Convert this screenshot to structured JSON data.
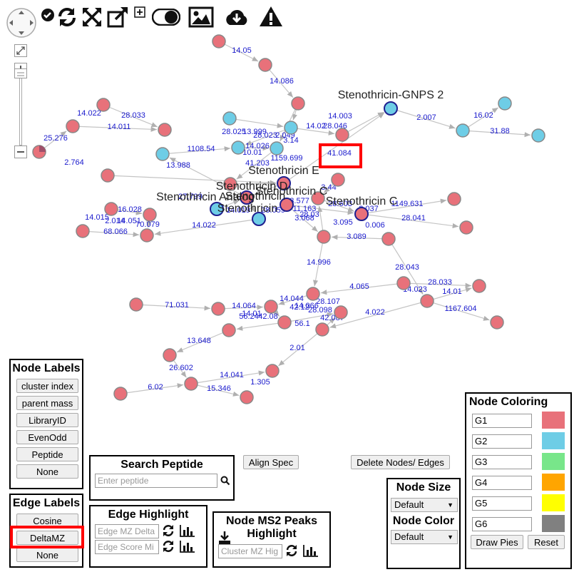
{
  "toolbar": {
    "icons": [
      "pan-icon",
      "check-icon",
      "refresh-icon",
      "expand-icon",
      "open-new-window-icon",
      "add-icon",
      "toggle-icon",
      "image-icon",
      "cloud-download-icon",
      "warning-icon"
    ]
  },
  "graph": {
    "node_labels": [
      "Stenothricin-GNPS 2",
      "Stenothricin E",
      "Stenothricin D",
      "Stenothricin Analog",
      "Stenothricin",
      "Stenothricin C",
      "Stenothricin C",
      "Stenothricin"
    ],
    "edge_labels": [
      "14.05",
      "14.086",
      "14.022",
      "28.033",
      "14.011",
      "25.276",
      "2.764",
      "1108.54",
      "28.025",
      "13.999",
      "28.023",
      "2.049",
      "3.14",
      "14.026",
      "10.01",
      "41.203",
      "1159.699",
      "14.003",
      "14.02",
      "28.046",
      "41.084",
      "2.007",
      "16.02",
      "31.88",
      "13.988",
      "27.799",
      "16.028",
      "2.014",
      "14.051",
      "14.015",
      "68.066",
      "70.079",
      "14.019",
      "28.059",
      "14.022",
      "3.44",
      "1149.631",
      "28.041",
      "28.603",
      "2.037",
      "0.006",
      "28.03",
      "3.068",
      "11.163",
      "28.577",
      "3.095",
      "3.089",
      "14.996",
      "28.043",
      "4.065",
      "28.033",
      "14.023",
      "14.01",
      "1167.604",
      "71.031",
      "14.064",
      "14.01",
      "56.24",
      "42.08",
      "14.044",
      "42.12",
      "28.098",
      "28.107",
      "14.066",
      "42.087",
      "56.1",
      "4.022",
      "13.648",
      "2.01",
      "26.602",
      "14.041",
      "1.305",
      "6.02",
      "15.346"
    ],
    "highlighted_edge_label": "41.084"
  },
  "node_labels_panel": {
    "title": "Node Labels",
    "buttons": [
      "cluster index",
      "parent mass",
      "LibraryID",
      "EvenOdd",
      "Peptide",
      "None"
    ]
  },
  "edge_labels_panel": {
    "title": "Edge Labels",
    "buttons": [
      "Cosine",
      "DeltaMZ",
      "None"
    ],
    "selected": "DeltaMZ"
  },
  "search_peptide": {
    "title": "Search Peptide",
    "placeholder": "Enter peptide"
  },
  "edge_highlight": {
    "title": "Edge Highlight",
    "mz_placeholder": "Edge MZ Delta",
    "score_placeholder": "Edge Score Mi"
  },
  "ms2_highlight": {
    "title_line1": "Node MS2 Peaks",
    "title_line2": "Highlight",
    "placeholder": "Cluster MZ Hig"
  },
  "actions": {
    "align_spec": "Align Spec",
    "delete": "Delete Nodes/ Edges"
  },
  "node_size": {
    "title": "Node Size",
    "value": "Default"
  },
  "node_color": {
    "title": "Node Color",
    "value": "Default"
  },
  "node_coloring": {
    "title": "Node Coloring",
    "groups": [
      {
        "name": "G1",
        "color": "#e8717a"
      },
      {
        "name": "G2",
        "color": "#6ecde6"
      },
      {
        "name": "G3",
        "color": "#78e68a"
      },
      {
        "name": "G4",
        "color": "#ffa500"
      },
      {
        "name": "G5",
        "color": "#ffff00"
      },
      {
        "name": "G6",
        "color": "#808080"
      }
    ],
    "draw_pies": "Draw Pies",
    "reset": "Reset"
  },
  "colors": {
    "node_red": "#e8717a",
    "node_blue": "#6ecde6",
    "edge_label": "#1a1acd",
    "highlight": "#ff0000"
  }
}
